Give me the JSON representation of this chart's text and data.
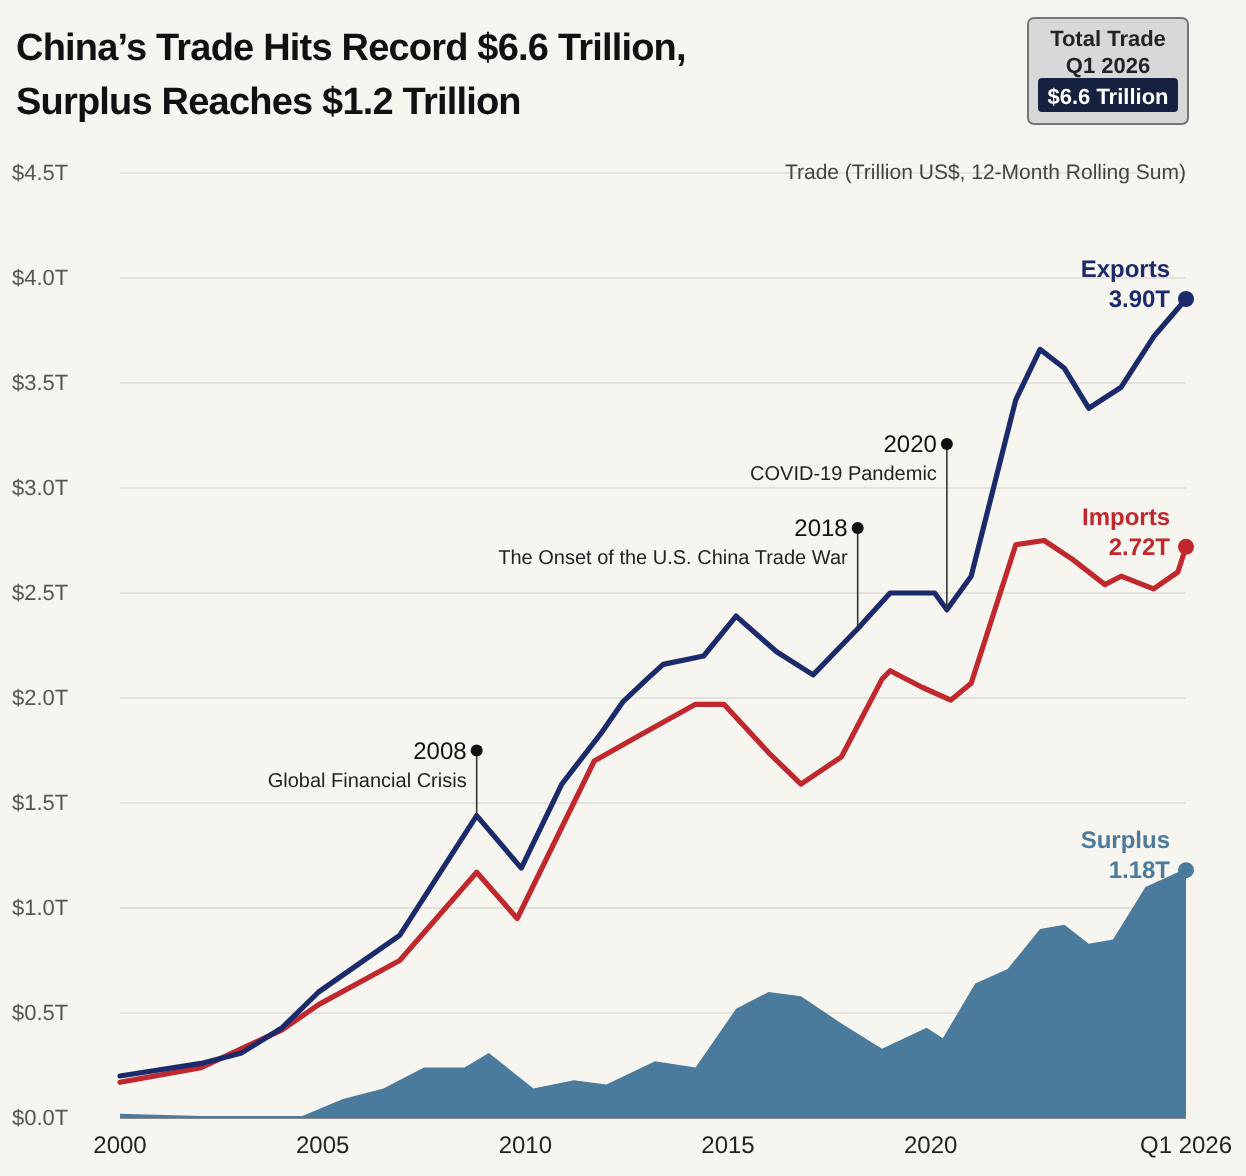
{
  "chart_data": {
    "type": "line",
    "title": "China’s Trade Hits Record $6.6 Trillion,\nSurplus Reaches $1.2 Trillion",
    "ylabel": "Trade (Trillion US$, 12-Month Rolling Sum)",
    "xlim": [
      2000,
      2026.3
    ],
    "xticks": [
      2000,
      2005,
      2010,
      2015,
      2020,
      {
        "value": 2026.3,
        "label": "Q1 2026"
      }
    ],
    "ylim": [
      0,
      4.5
    ],
    "yticks": [
      {
        "value": 0,
        "label": "$0.0T"
      },
      {
        "value": 0.5,
        "label": "$0.5T"
      },
      {
        "value": 1,
        "label": "$1.0T"
      },
      {
        "value": 1.5,
        "label": "$1.5T"
      },
      {
        "value": 2,
        "label": "$2.0T"
      },
      {
        "value": 2.5,
        "label": "$2.5T"
      },
      {
        "value": 3,
        "label": "$3.0T"
      },
      {
        "value": 3.5,
        "label": "$3.5T"
      },
      {
        "value": 4,
        "label": "$4.0T"
      },
      {
        "value": 4.5,
        "label": "$4.5T"
      }
    ],
    "grid": "y",
    "legend": false,
    "series": [
      {
        "name": "Surplus",
        "type": "area",
        "color": "#4a7a9c",
        "x": [
          2000,
          2002,
          2003,
          2004.5,
          2005.5,
          2006.5,
          2007.5,
          2008.5,
          2009.1,
          2010.2,
          2011.2,
          2012,
          2013.2,
          2014.2,
          2015.2,
          2016,
          2016.8,
          2017.8,
          2018.8,
          2019.9,
          2020.3,
          2021.1,
          2021.9,
          2022.7,
          2023.3,
          2023.9,
          2024.5,
          2025.3,
          2026.1,
          2026.3
        ],
        "values": [
          0.02,
          0.01,
          0.01,
          0.01,
          0.09,
          0.14,
          0.24,
          0.24,
          0.31,
          0.14,
          0.18,
          0.16,
          0.27,
          0.24,
          0.52,
          0.6,
          0.58,
          0.45,
          0.33,
          0.43,
          0.38,
          0.64,
          0.71,
          0.9,
          0.92,
          0.83,
          0.85,
          1.1,
          1.17,
          1.18
        ],
        "value_labels": [
          null,
          null,
          null,
          null,
          null,
          null,
          null,
          null,
          null,
          null,
          null,
          null,
          null,
          null,
          null,
          null,
          null,
          null,
          null,
          null,
          null,
          null,
          null,
          null,
          null,
          null,
          null,
          null,
          null,
          "1.18T"
        ]
      },
      {
        "name": "Imports",
        "color": "#c0282d",
        "x": [
          2000,
          2002,
          2004,
          2004.9,
          2006.9,
          2008.8,
          2009.8,
          2011.7,
          2012.8,
          2014.2,
          2014.9,
          2016,
          2016.8,
          2017.8,
          2018.8,
          2019,
          2019.8,
          2020.5,
          2021,
          2022.1,
          2022.8,
          2023.5,
          2024.3,
          2024.7,
          2025.5,
          2026.1,
          2026.3
        ],
        "values": [
          0.17,
          0.24,
          0.42,
          0.54,
          0.75,
          1.17,
          0.95,
          1.7,
          1.82,
          1.97,
          1.97,
          1.74,
          1.59,
          1.72,
          2.09,
          2.13,
          2.05,
          1.99,
          2.07,
          2.73,
          2.75,
          2.66,
          2.54,
          2.58,
          2.52,
          2.6,
          2.72
        ],
        "value_labels": [
          null,
          null,
          null,
          null,
          null,
          null,
          null,
          null,
          null,
          null,
          null,
          null,
          null,
          null,
          null,
          null,
          null,
          null,
          null,
          null,
          null,
          null,
          null,
          null,
          null,
          null,
          "2.72T"
        ]
      },
      {
        "name": "Exports",
        "color": "#1b2a6b",
        "x": [
          2000,
          2002,
          2003,
          2004,
          2004.9,
          2006.9,
          2008.8,
          2009.9,
          2010.9,
          2011.9,
          2012.4,
          2013,
          2013.4,
          2014.4,
          2015.2,
          2016.2,
          2017.1,
          2018.2,
          2019,
          2020.1,
          2020.4,
          2021,
          2022.1,
          2022.7,
          2023.3,
          2023.9,
          2024.7,
          2025.5,
          2026.3
        ],
        "values": [
          0.2,
          0.26,
          0.31,
          0.43,
          0.6,
          0.87,
          1.44,
          1.19,
          1.59,
          1.84,
          1.98,
          2.09,
          2.16,
          2.2,
          2.39,
          2.22,
          2.11,
          2.33,
          2.5,
          2.5,
          2.42,
          2.58,
          3.42,
          3.66,
          3.57,
          3.38,
          3.48,
          3.72,
          3.9
        ],
        "value_labels": [
          null,
          null,
          null,
          null,
          null,
          null,
          null,
          null,
          null,
          null,
          null,
          null,
          null,
          null,
          null,
          null,
          null,
          null,
          null,
          null,
          null,
          null,
          null,
          null,
          null,
          null,
          null,
          null,
          "3.90T"
        ]
      }
    ],
    "annotations": [
      {
        "text": "2008\nGlobal Financial Crisis",
        "x": 2008.8,
        "y": 1.75
      },
      {
        "text": "2018\nThe Onset of the U.S. China Trade War",
        "x": 2018.2,
        "y": 2.81
      },
      {
        "text": "2020\nCOVID-19 Pandemic",
        "x": 2020.4,
        "y": 3.21
      },
      "Total Trade\nQ1 2026\n$6.6 Trillion"
    ]
  }
}
